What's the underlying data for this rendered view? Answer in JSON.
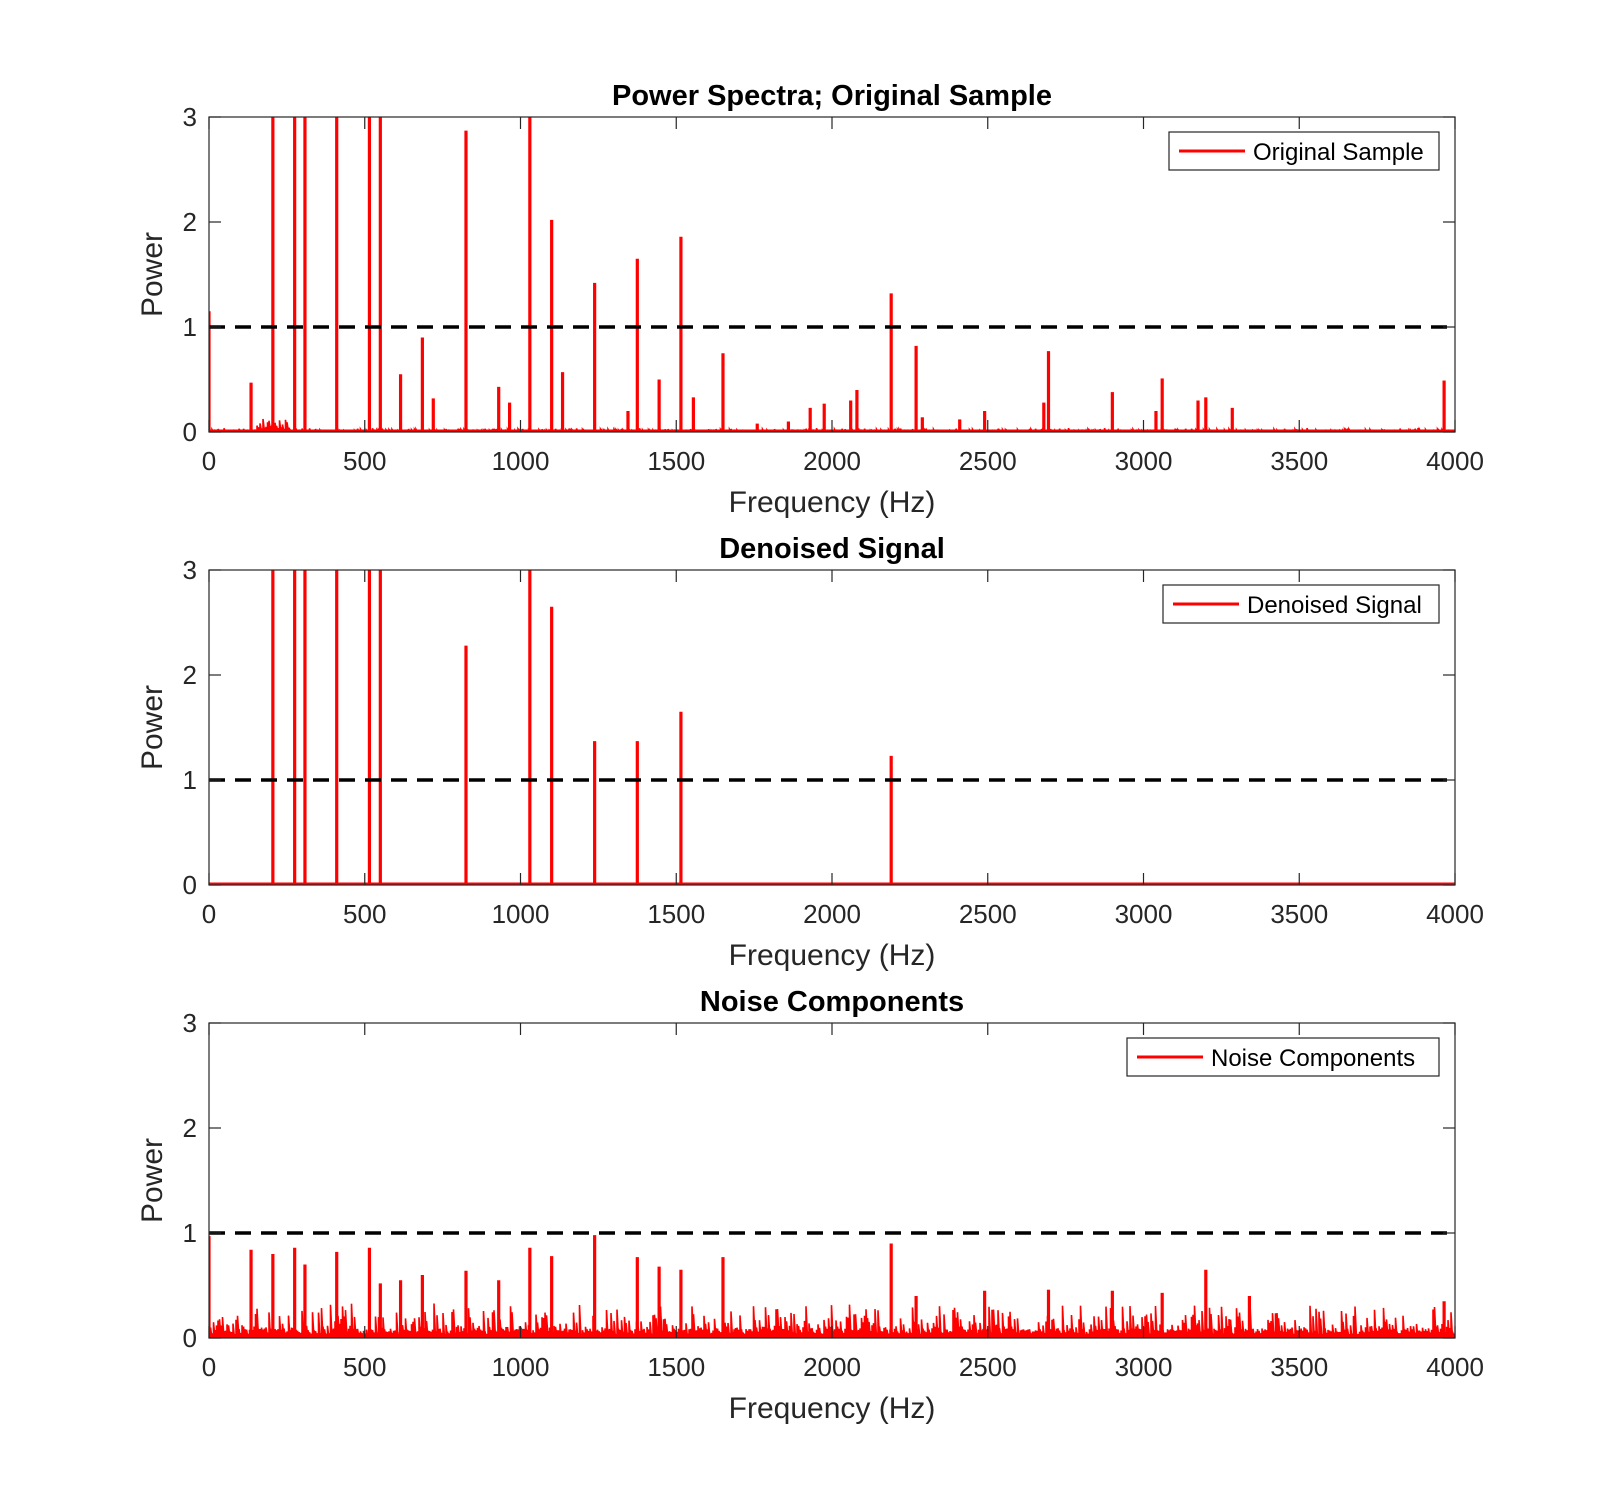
{
  "figure": {
    "line_color": "#ff0000",
    "threshold_color": "#000000"
  },
  "chart_data": [
    {
      "type": "line",
      "title": "Power Spectra; Original Sample",
      "xlabel": "Frequency (Hz)",
      "ylabel": "Power",
      "xlim": [
        0,
        4000
      ],
      "ylim": [
        0,
        3
      ],
      "xticks": [
        "0",
        "500",
        "1000",
        "1500",
        "2000",
        "2500",
        "3000",
        "3500",
        "4000"
      ],
      "yticks": [
        "0",
        "1",
        "2",
        "3"
      ],
      "legend": {
        "position": "top-right",
        "entries": [
          "Original Sample"
        ]
      },
      "threshold": 1,
      "series": [
        {
          "name": "Original Sample",
          "noise_level": 0.02,
          "peaks": [
            {
              "x": 0,
              "y": 1.15
            },
            {
              "x": 135,
              "y": 0.47
            },
            {
              "x": 205,
              "y": 3
            },
            {
              "x": 275,
              "y": 3
            },
            {
              "x": 308,
              "y": 3
            },
            {
              "x": 410,
              "y": 3
            },
            {
              "x": 515,
              "y": 3
            },
            {
              "x": 550,
              "y": 3
            },
            {
              "x": 615,
              "y": 0.55
            },
            {
              "x": 685,
              "y": 0.9
            },
            {
              "x": 720,
              "y": 0.32
            },
            {
              "x": 825,
              "y": 2.87
            },
            {
              "x": 930,
              "y": 0.43
            },
            {
              "x": 965,
              "y": 0.28
            },
            {
              "x": 1030,
              "y": 3
            },
            {
              "x": 1100,
              "y": 2.02
            },
            {
              "x": 1135,
              "y": 0.57
            },
            {
              "x": 1238,
              "y": 1.42
            },
            {
              "x": 1345,
              "y": 0.2
            },
            {
              "x": 1375,
              "y": 1.65
            },
            {
              "x": 1445,
              "y": 0.5
            },
            {
              "x": 1555,
              "y": 0.33
            },
            {
              "x": 1515,
              "y": 1.86
            },
            {
              "x": 1650,
              "y": 0.75
            },
            {
              "x": 1760,
              "y": 0.08
            },
            {
              "x": 1860,
              "y": 0.1
            },
            {
              "x": 1930,
              "y": 0.23
            },
            {
              "x": 1975,
              "y": 0.27
            },
            {
              "x": 2060,
              "y": 0.3
            },
            {
              "x": 2080,
              "y": 0.4
            },
            {
              "x": 2190,
              "y": 1.32
            },
            {
              "x": 2270,
              "y": 0.82
            },
            {
              "x": 2290,
              "y": 0.14
            },
            {
              "x": 2410,
              "y": 0.12
            },
            {
              "x": 2490,
              "y": 0.2
            },
            {
              "x": 2680,
              "y": 0.28
            },
            {
              "x": 2695,
              "y": 0.77
            },
            {
              "x": 2900,
              "y": 0.38
            },
            {
              "x": 3040,
              "y": 0.2
            },
            {
              "x": 3060,
              "y": 0.51
            },
            {
              "x": 3175,
              "y": 0.3
            },
            {
              "x": 3200,
              "y": 0.33
            },
            {
              "x": 3285,
              "y": 0.23
            },
            {
              "x": 3965,
              "y": 0.49
            }
          ]
        }
      ]
    },
    {
      "type": "line",
      "title": "Denoised Signal",
      "xlabel": "Frequency (Hz)",
      "ylabel": "Power",
      "xlim": [
        0,
        4000
      ],
      "ylim": [
        0,
        3
      ],
      "xticks": [
        "0",
        "500",
        "1000",
        "1500",
        "2000",
        "2500",
        "3000",
        "3500",
        "4000"
      ],
      "yticks": [
        "0",
        "1",
        "2",
        "3"
      ],
      "legend": {
        "position": "top-right",
        "entries": [
          "Denoised Signal"
        ]
      },
      "threshold": 1,
      "series": [
        {
          "name": "Denoised Signal",
          "noise_level": 0,
          "peaks": [
            {
              "x": 205,
              "y": 3
            },
            {
              "x": 275,
              "y": 3
            },
            {
              "x": 308,
              "y": 3
            },
            {
              "x": 410,
              "y": 3
            },
            {
              "x": 515,
              "y": 3
            },
            {
              "x": 550,
              "y": 3
            },
            {
              "x": 825,
              "y": 2.28
            },
            {
              "x": 1030,
              "y": 3
            },
            {
              "x": 1100,
              "y": 2.65
            },
            {
              "x": 1238,
              "y": 1.37
            },
            {
              "x": 1375,
              "y": 1.37
            },
            {
              "x": 1515,
              "y": 1.65
            },
            {
              "x": 2190,
              "y": 1.23
            }
          ]
        }
      ]
    },
    {
      "type": "line",
      "title": "Noise Components",
      "xlabel": "Frequency (Hz)",
      "ylabel": "Power",
      "xlim": [
        0,
        4000
      ],
      "ylim": [
        0,
        3
      ],
      "xticks": [
        "0",
        "500",
        "1000",
        "1500",
        "2000",
        "2500",
        "3000",
        "3500",
        "4000"
      ],
      "yticks": [
        "0",
        "1",
        "2",
        "3"
      ],
      "legend": {
        "position": "top-right",
        "entries": [
          "Noise Components"
        ]
      },
      "threshold": 1,
      "series": [
        {
          "name": "Noise Components",
          "noise_level": 0.18,
          "peaks": [
            {
              "x": 0,
              "y": 0.97
            },
            {
              "x": 135,
              "y": 0.84
            },
            {
              "x": 205,
              "y": 0.8
            },
            {
              "x": 275,
              "y": 0.86
            },
            {
              "x": 308,
              "y": 0.7
            },
            {
              "x": 410,
              "y": 0.82
            },
            {
              "x": 515,
              "y": 0.86
            },
            {
              "x": 550,
              "y": 0.52
            },
            {
              "x": 615,
              "y": 0.55
            },
            {
              "x": 685,
              "y": 0.6
            },
            {
              "x": 825,
              "y": 0.64
            },
            {
              "x": 930,
              "y": 0.55
            },
            {
              "x": 1030,
              "y": 0.86
            },
            {
              "x": 1100,
              "y": 0.78
            },
            {
              "x": 1238,
              "y": 0.98
            },
            {
              "x": 1375,
              "y": 0.77
            },
            {
              "x": 1445,
              "y": 0.68
            },
            {
              "x": 1515,
              "y": 0.65
            },
            {
              "x": 1650,
              "y": 0.77
            },
            {
              "x": 2190,
              "y": 0.9
            },
            {
              "x": 2270,
              "y": 0.4
            },
            {
              "x": 2490,
              "y": 0.45
            },
            {
              "x": 2695,
              "y": 0.46
            },
            {
              "x": 2900,
              "y": 0.45
            },
            {
              "x": 3060,
              "y": 0.43
            },
            {
              "x": 3200,
              "y": 0.65
            },
            {
              "x": 3340,
              "y": 0.4
            },
            {
              "x": 3965,
              "y": 0.35
            }
          ]
        }
      ]
    }
  ]
}
